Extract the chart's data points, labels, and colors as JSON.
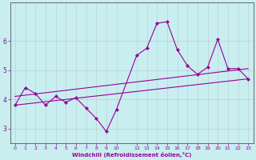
{
  "background_color": "#c8eef0",
  "line_color": "#990099",
  "grid_color": "#b0b0b0",
  "xlabel": "Windchill (Refroidissement éolien,°C)",
  "xlabel_color": "#990099",
  "tick_color": "#990099",
  "axis_color": "#555555",
  "ylim": [
    2.5,
    7.3
  ],
  "xlim": [
    -0.5,
    23.5
  ],
  "yticks": [
    3,
    4,
    5,
    6
  ],
  "xticks": [
    0,
    1,
    2,
    3,
    4,
    5,
    6,
    7,
    8,
    9,
    10,
    12,
    13,
    14,
    15,
    16,
    17,
    18,
    19,
    20,
    21,
    22,
    23
  ],
  "main_x": [
    0,
    1,
    2,
    3,
    4,
    5,
    6,
    7,
    8,
    9,
    10,
    12,
    13,
    14,
    15,
    16,
    17,
    18,
    19,
    20,
    21,
    22,
    23
  ],
  "main_y": [
    3.8,
    4.4,
    4.2,
    3.8,
    4.1,
    3.9,
    4.05,
    3.7,
    3.35,
    2.9,
    3.65,
    5.5,
    5.75,
    6.6,
    6.65,
    5.7,
    5.15,
    4.85,
    5.1,
    6.05,
    5.05,
    5.05,
    4.7
  ],
  "trend1_x": [
    0,
    23
  ],
  "trend1_y": [
    3.8,
    4.7
  ],
  "trend2_x": [
    0,
    23
  ],
  "trend2_y": [
    4.1,
    5.05
  ]
}
